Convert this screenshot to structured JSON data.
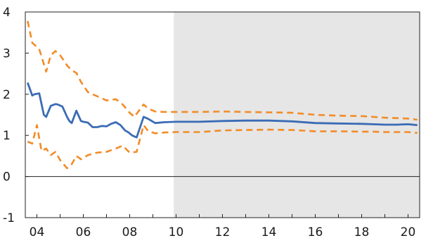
{
  "chart_data": {
    "type": "line",
    "title": "",
    "xlabel": "",
    "ylabel": "",
    "xlim": [
      2003.5,
      2020.5
    ],
    "ylim": [
      -1,
      4
    ],
    "x_tick_values": [
      2004,
      2006,
      2008,
      2010,
      2012,
      2014,
      2016,
      2018,
      2020
    ],
    "x_tick_labels": [
      "04",
      "06",
      "08",
      "10",
      "12",
      "14",
      "16",
      "18",
      "20"
    ],
    "y_tick_values": [
      -1,
      0,
      1,
      2,
      3,
      4
    ],
    "y_tick_labels": [
      "-1",
      "0",
      "1",
      "2",
      "3",
      "4"
    ],
    "shaded_region": [
      2009.9,
      2020.5
    ],
    "zero_line": 0,
    "grid": false,
    "legend": "none",
    "colors": {
      "estimate": "#3a6cb5",
      "band": "#f28c28",
      "shade": "#e6e6e6",
      "axis": "#222222"
    },
    "series": [
      {
        "role": "estimate",
        "style": "solid",
        "x": [
          2003.6,
          2003.8,
          2003.9,
          2004.1,
          2004.3,
          2004.4,
          2004.6,
          2004.8,
          2004.9,
          2005.1,
          2005.3,
          2005.4,
          2005.5,
          2005.7,
          2005.9,
          2006.0,
          2006.2,
          2006.4,
          2006.6,
          2006.8,
          2007.0,
          2007.2,
          2007.4,
          2007.6,
          2007.8,
          2007.95,
          2008.1,
          2008.3,
          2008.6,
          2008.8,
          2009.1,
          2009.5,
          2010,
          2011,
          2012,
          2013,
          2014,
          2015,
          2016,
          2017,
          2018,
          2018.5,
          2019,
          2019.5,
          2020,
          2020.4
        ],
        "values": [
          2.28,
          1.97,
          2.0,
          2.02,
          1.5,
          1.45,
          1.72,
          1.76,
          1.75,
          1.7,
          1.45,
          1.35,
          1.3,
          1.6,
          1.35,
          1.33,
          1.31,
          1.2,
          1.2,
          1.23,
          1.22,
          1.28,
          1.32,
          1.25,
          1.12,
          1.07,
          1.0,
          0.95,
          1.45,
          1.4,
          1.3,
          1.32,
          1.33,
          1.33,
          1.35,
          1.36,
          1.36,
          1.34,
          1.3,
          1.29,
          1.28,
          1.27,
          1.26,
          1.26,
          1.27,
          1.25
        ]
      },
      {
        "role": "upper band",
        "style": "dashed",
        "x": [
          2003.6,
          2003.8,
          2004.1,
          2004.4,
          2004.6,
          2004.8,
          2005.0,
          2005.3,
          2005.5,
          2005.7,
          2005.9,
          2006.2,
          2006.6,
          2007.0,
          2007.4,
          2007.7,
          2008.0,
          2008.2,
          2008.6,
          2008.8,
          2009.1,
          2009.5,
          2010,
          2011,
          2012,
          2013,
          2014,
          2015,
          2016,
          2017,
          2018,
          2018.5,
          2019,
          2019.5,
          2020,
          2020.4
        ],
        "values": [
          3.78,
          3.25,
          3.1,
          2.55,
          2.95,
          3.05,
          2.95,
          2.7,
          2.58,
          2.52,
          2.3,
          2.05,
          1.95,
          1.85,
          1.88,
          1.75,
          1.55,
          1.45,
          1.75,
          1.65,
          1.58,
          1.57,
          1.57,
          1.57,
          1.58,
          1.57,
          1.56,
          1.55,
          1.5,
          1.48,
          1.47,
          1.45,
          1.43,
          1.42,
          1.41,
          1.38
        ]
      },
      {
        "role": "lower band",
        "style": "dashed",
        "x": [
          2003.6,
          2003.8,
          2004.0,
          2004.2,
          2004.4,
          2004.6,
          2004.8,
          2005.0,
          2005.3,
          2005.5,
          2005.7,
          2005.9,
          2006.2,
          2006.6,
          2007.0,
          2007.4,
          2007.7,
          2008.0,
          2008.3,
          2008.6,
          2008.8,
          2009.1,
          2009.5,
          2010,
          2011,
          2012,
          2013,
          2014,
          2015,
          2016,
          2017,
          2018,
          2018.5,
          2019,
          2019.5,
          2020,
          2020.4
        ],
        "values": [
          0.85,
          0.8,
          1.25,
          0.62,
          0.68,
          0.52,
          0.6,
          0.4,
          0.2,
          0.3,
          0.5,
          0.42,
          0.52,
          0.58,
          0.6,
          0.68,
          0.75,
          0.58,
          0.6,
          1.25,
          1.1,
          1.05,
          1.07,
          1.08,
          1.08,
          1.12,
          1.13,
          1.14,
          1.13,
          1.1,
          1.1,
          1.09,
          1.09,
          1.08,
          1.08,
          1.08,
          1.06
        ]
      }
    ]
  }
}
